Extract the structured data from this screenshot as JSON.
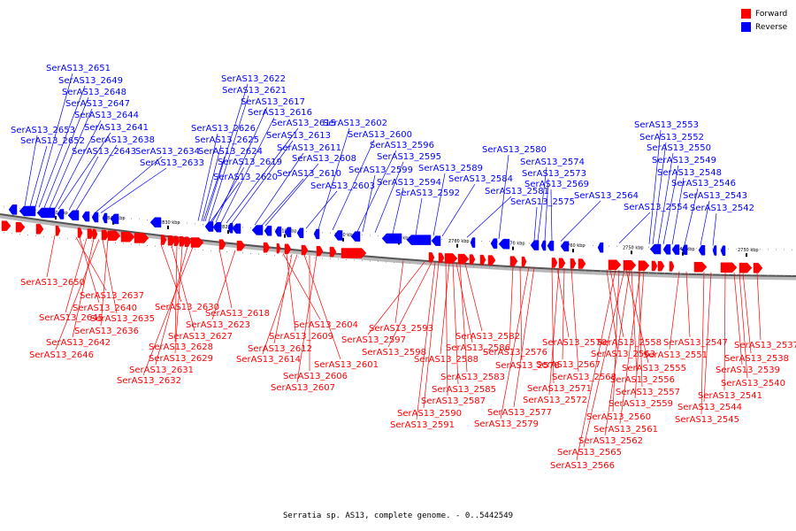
{
  "legend": {
    "forward_label": "Forward",
    "reverse_label": "Reverse",
    "forward_color": "#ff0000",
    "reverse_color": "#0000ff"
  },
  "caption": "Serratia sp. AS13, complete genome. - 0..5442549",
  "tick_labels": [
    "2850 kbp",
    "2840 kbp",
    "2830 kbp",
    "2820 kbp",
    "2810 kbp",
    "2800 kbp",
    "2790 kbp",
    "2780 kbp",
    "2770 kbp",
    "2760 kbp",
    "2750 kbp",
    "2740 kbp",
    "2730 kbp"
  ],
  "reverse_genes": [
    "SerAS13_2651",
    "SerAS13_2649",
    "SerAS13_2648",
    "SerAS13_2647",
    "SerAS13_2644",
    "SerAS13_2653",
    "SerAS13_2641",
    "SerAS13_2652",
    "SerAS13_2638",
    "SerAS13_2643",
    "SerAS13_2634",
    "SerAS13_2633",
    "SerAS13_2622",
    "SerAS13_2621",
    "SerAS13_2617",
    "SerAS13_2616",
    "SerAS13_2615",
    "SerAS13_2626",
    "SerAS13_2613",
    "SerAS13_2625",
    "SerAS13_2611",
    "SerAS13_2624",
    "SerAS13_2619",
    "SerAS13_2608",
    "SerAS13_2610",
    "SerAS13_2620",
    "SerAS13_2603",
    "SerAS13_2602",
    "SerAS13_2600",
    "SerAS13_2596",
    "SerAS13_2595",
    "SerAS13_2599",
    "SerAS13_2594",
    "SerAS13_2592",
    "SerAS13_2589",
    "SerAS13_2584",
    "SerAS13_2581",
    "SerAS13_2580",
    "SerAS13_2574",
    "SerAS13_2573",
    "SerAS13_2569",
    "SerAS13_2575",
    "SerAS13_2564",
    "SerAS13_2553",
    "SerAS13_2552",
    "SerAS13_2550",
    "SerAS13_2549",
    "SerAS13_2548",
    "SerAS13_2546",
    "SerAS13_2543",
    "SerAS13_2554",
    "SerAS13_2542"
  ],
  "forward_genes": [
    "SerAS13_2650",
    "SerAS13_2637",
    "SerAS13_2640",
    "SerAS13_2645",
    "SerAS13_2635",
    "SerAS13_2636",
    "SerAS13_2642",
    "SerAS13_2646",
    "SerAS13_2630",
    "SerAS13_2627",
    "SerAS13_2628",
    "SerAS13_2629",
    "SerAS13_2631",
    "SerAS13_2632",
    "SerAS13_2618",
    "SerAS13_2623",
    "SerAS13_2604",
    "SerAS13_2609",
    "SerAS13_2612",
    "SerAS13_2614",
    "SerAS13_2601",
    "SerAS13_2606",
    "SerAS13_2607",
    "SerAS13_2593",
    "SerAS13_2597",
    "SerAS13_2598",
    "SerAS13_2582",
    "SerAS13_2586",
    "SerAS13_2588",
    "SerAS13_2583",
    "SerAS13_2585",
    "SerAS13_2587",
    "SerAS13_2590",
    "SerAS13_2591",
    "SerAS13_2576",
    "SerAS13_2578",
    "SerAS13_2570",
    "SerAS13_2567",
    "SerAS13_2568",
    "SerAS13_2571",
    "SerAS13_2572",
    "SerAS13_2577",
    "SerAS13_2579",
    "SerAS13_2558",
    "SerAS13_2563",
    "SerAS13_2555",
    "SerAS13_2556",
    "SerAS13_2557",
    "SerAS13_2559",
    "SerAS13_2560",
    "SerAS13_2561",
    "SerAS13_2562",
    "SerAS13_2565",
    "SerAS13_2566",
    "SerAS13_2547",
    "SerAS13_2551",
    "SerAS13_2537",
    "SerAS13_2538",
    "SerAS13_2539",
    "SerAS13_2540",
    "SerAS13_2541",
    "SerAS13_2544",
    "SerAS13_2545"
  ]
}
